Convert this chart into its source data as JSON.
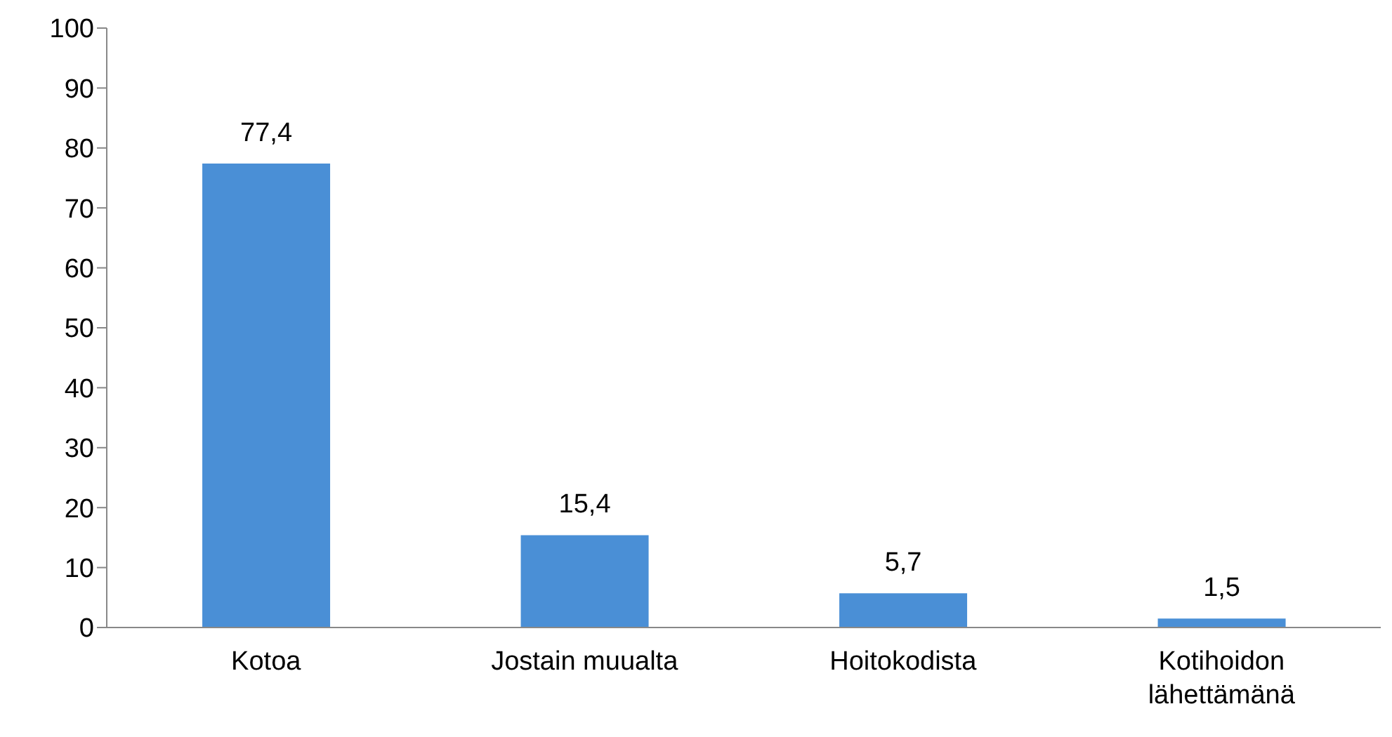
{
  "chart_data": {
    "type": "bar",
    "categories": [
      "Kotoa",
      "Jostain muualta",
      "Hoitokodista",
      "Kotihoidon lähettämänä"
    ],
    "values": [
      77.4,
      15.4,
      5.7,
      1.5
    ],
    "value_labels": [
      "77,4",
      "15,4",
      "5,7",
      "1,5"
    ],
    "color": "#4a8fd6",
    "ylim": [
      0,
      100
    ],
    "yticks": [
      0,
      10,
      20,
      30,
      40,
      50,
      60,
      70,
      80,
      90,
      100
    ]
  }
}
